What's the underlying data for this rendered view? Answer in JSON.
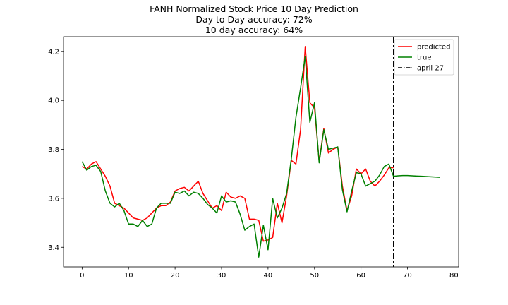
{
  "chart_data": {
    "type": "line",
    "title": "FANH Normalized Stock Price 10 Day Prediction",
    "subtitle_lines": [
      "Day to Day accuracy: 72%",
      "10 day accuracy: 64%"
    ],
    "xlabel": "",
    "ylabel": "",
    "xlim": [
      -4,
      81
    ],
    "ylim": [
      3.32,
      4.26
    ],
    "xticks": [
      0,
      10,
      20,
      30,
      40,
      50,
      60,
      70,
      80
    ],
    "yticks": [
      3.4,
      3.6,
      3.8,
      4.0,
      4.2
    ],
    "ytick_labels": [
      "3.4",
      "3.6",
      "3.8",
      "4.0",
      "4.2"
    ],
    "grid": false,
    "legend_position": "top-right",
    "series": [
      {
        "name": "predicted",
        "color": "#ff0000",
        "x": [
          0,
          1,
          2,
          3,
          4,
          5,
          6,
          7,
          8,
          9,
          10,
          11,
          12,
          13,
          14,
          15,
          16,
          17,
          18,
          19,
          20,
          21,
          22,
          23,
          24,
          25,
          26,
          27,
          28,
          29,
          30,
          31,
          32,
          33,
          34,
          35,
          36,
          37,
          38,
          39,
          40,
          41,
          42,
          43,
          44,
          45,
          46,
          47,
          48,
          49,
          50,
          51,
          52,
          53,
          54,
          55,
          56,
          57,
          58,
          59,
          60,
          61,
          62,
          63,
          64,
          65,
          66,
          67
        ],
        "y": [
          3.73,
          3.72,
          3.74,
          3.75,
          3.72,
          3.69,
          3.65,
          3.58,
          3.57,
          3.56,
          3.54,
          3.52,
          3.515,
          3.51,
          3.52,
          3.54,
          3.56,
          3.57,
          3.57,
          3.585,
          3.63,
          3.64,
          3.645,
          3.63,
          3.65,
          3.67,
          3.62,
          3.59,
          3.56,
          3.57,
          3.55,
          3.625,
          3.605,
          3.6,
          3.61,
          3.6,
          3.515,
          3.515,
          3.51,
          3.425,
          3.43,
          3.44,
          3.58,
          3.5,
          3.61,
          3.755,
          3.74,
          3.88,
          4.22,
          3.99,
          3.97,
          3.75,
          3.885,
          3.785,
          3.8,
          3.81,
          3.65,
          3.55,
          3.61,
          3.72,
          3.7,
          3.72,
          3.67,
          3.65,
          3.67,
          3.695,
          3.725,
          3.725
        ]
      },
      {
        "name": "true",
        "color": "#008000",
        "x": [
          0,
          1,
          2,
          3,
          4,
          5,
          6,
          7,
          8,
          9,
          10,
          11,
          12,
          13,
          14,
          15,
          16,
          17,
          18,
          19,
          20,
          21,
          22,
          23,
          24,
          25,
          26,
          27,
          28,
          29,
          30,
          31,
          32,
          33,
          34,
          35,
          36,
          37,
          38,
          39,
          40,
          41,
          42,
          43,
          44,
          45,
          46,
          47,
          48,
          49,
          50,
          51,
          52,
          53,
          54,
          55,
          56,
          57,
          58,
          59,
          60,
          61,
          62,
          63,
          64,
          65,
          66,
          67,
          68,
          69,
          70,
          71,
          72,
          73,
          74,
          75,
          76,
          77
        ],
        "y": [
          3.75,
          3.715,
          3.73,
          3.735,
          3.71,
          3.63,
          3.58,
          3.565,
          3.58,
          3.55,
          3.495,
          3.495,
          3.485,
          3.51,
          3.485,
          3.495,
          3.56,
          3.58,
          3.58,
          3.58,
          3.625,
          3.62,
          3.63,
          3.61,
          3.625,
          3.62,
          3.6,
          3.575,
          3.56,
          3.54,
          3.61,
          3.585,
          3.59,
          3.585,
          3.535,
          3.47,
          3.485,
          3.495,
          3.36,
          3.49,
          3.39,
          3.6,
          3.52,
          3.56,
          3.62,
          3.76,
          3.93,
          4.05,
          4.18,
          3.91,
          3.99,
          3.745,
          3.88,
          3.8,
          3.805,
          3.81,
          3.635,
          3.545,
          3.63,
          3.705,
          3.7,
          3.65,
          3.66,
          3.67,
          3.695,
          3.73,
          3.74,
          3.69,
          3.692,
          3.693,
          3.693,
          3.692,
          3.691,
          3.69,
          3.689,
          3.688,
          3.687,
          3.686
        ]
      }
    ],
    "vline": {
      "name": "april 27",
      "x": 67,
      "color": "#000000",
      "style": "dashdot"
    }
  }
}
